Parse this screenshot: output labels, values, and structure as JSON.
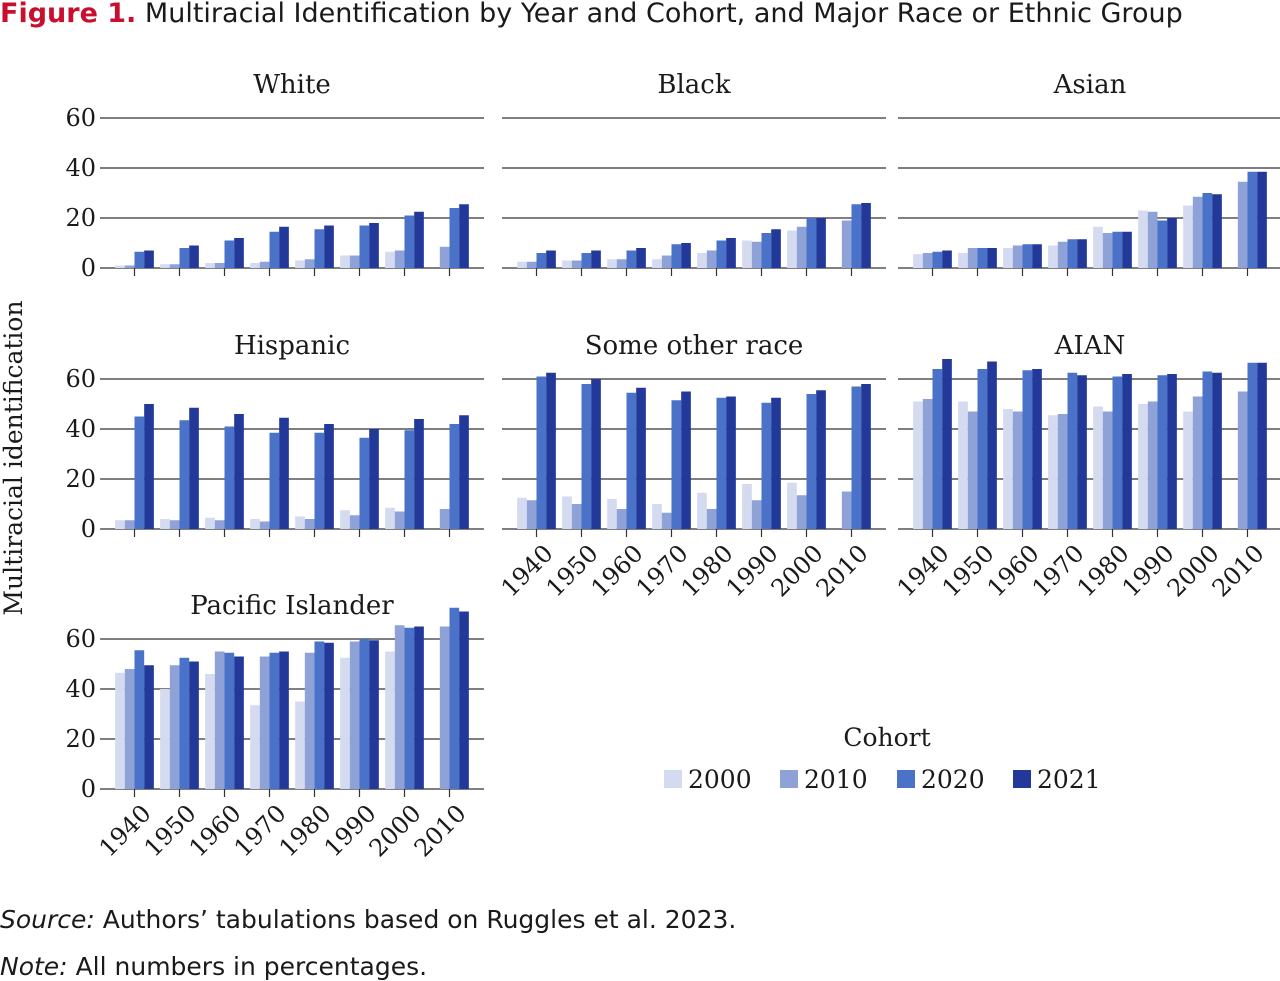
{
  "figure_label": "Figure 1.",
  "title": "Multiracial Identification by Year and Cohort, and Major Race or Ethnic Group",
  "ylabel": "Multiracial identification",
  "legend": {
    "title": "Cohort",
    "items": [
      {
        "name": "2000",
        "color": "#d4daf0"
      },
      {
        "name": "2010",
        "color": "#8ea2d8"
      },
      {
        "name": "2020",
        "color": "#4a72c8"
      },
      {
        "name": "2021",
        "color": "#23399a"
      }
    ]
  },
  "source_label": "Source:",
  "source": "Authors’ tabulations based on Ruggles et al. 2023.",
  "note_label": "Note:",
  "note": "All numbers in percentages.",
  "chart_data": [
    {
      "type": "bar",
      "title": "White",
      "categories": [
        null,
        null,
        null,
        null,
        null,
        null,
        null,
        null
      ],
      "ylim": [
        0,
        75
      ],
      "yticks": [
        0,
        20,
        40,
        60
      ],
      "ytick_labels": true,
      "grid": true,
      "series": [
        {
          "values": [
            1,
            1.5,
            2,
            2,
            3,
            5,
            6.5,
            null
          ]
        },
        {
          "values": [
            1,
            1.5,
            2,
            2.5,
            3.5,
            5,
            7,
            8.5
          ]
        },
        {
          "values": [
            6.5,
            8,
            11,
            14.5,
            15.5,
            17,
            21,
            24
          ]
        },
        {
          "values": [
            7,
            9,
            12,
            16.5,
            17,
            18,
            22.5,
            25.5
          ]
        }
      ]
    },
    {
      "type": "bar",
      "title": "Black",
      "categories": [
        null,
        null,
        null,
        null,
        null,
        null,
        null,
        null
      ],
      "ylim": [
        0,
        75
      ],
      "yticks": [
        0,
        20,
        40,
        60
      ],
      "ytick_labels": false,
      "grid": true,
      "series": [
        {
          "values": [
            2.5,
            3,
            3.5,
            3.5,
            6,
            11,
            15,
            null
          ]
        },
        {
          "values": [
            2.5,
            3,
            3.5,
            5,
            7,
            10.5,
            16.5,
            19
          ]
        },
        {
          "values": [
            6,
            6,
            7,
            9.5,
            11,
            14,
            20,
            25.5
          ]
        },
        {
          "values": [
            7,
            7,
            8,
            10,
            12,
            15.5,
            20,
            26
          ]
        }
      ]
    },
    {
      "type": "bar",
      "title": "Asian",
      "categories": [
        null,
        null,
        null,
        null,
        null,
        null,
        null,
        null
      ],
      "ylim": [
        0,
        75
      ],
      "yticks": [
        0,
        20,
        40,
        60
      ],
      "ytick_labels": false,
      "grid": true,
      "series": [
        {
          "values": [
            5.5,
            6,
            8,
            9,
            16.5,
            23,
            25,
            null
          ]
        },
        {
          "values": [
            6,
            8,
            9,
            10.5,
            14,
            22.5,
            28.5,
            34.5
          ]
        },
        {
          "values": [
            6.5,
            8,
            9.5,
            11.5,
            14.5,
            19,
            30,
            38.5
          ]
        },
        {
          "values": [
            7,
            8,
            9.5,
            11.5,
            14.5,
            20,
            29.5,
            38.5
          ]
        }
      ]
    },
    {
      "type": "bar",
      "title": "Hispanic",
      "categories": [
        null,
        null,
        null,
        null,
        null,
        null,
        null,
        null
      ],
      "ylim": [
        0,
        75
      ],
      "yticks": [
        0,
        20,
        40,
        60
      ],
      "ytick_labels": true,
      "grid": true,
      "series": [
        {
          "values": [
            3.5,
            4,
            4.5,
            4,
            5,
            7.5,
            8.5,
            null
          ]
        },
        {
          "values": [
            3.5,
            3.5,
            3.5,
            3,
            4,
            5.5,
            7,
            8
          ]
        },
        {
          "values": [
            45,
            43.5,
            41,
            38.5,
            38.5,
            36.5,
            39.5,
            42
          ]
        },
        {
          "values": [
            50,
            48.5,
            46,
            44.5,
            42,
            40,
            44,
            45.5
          ]
        }
      ]
    },
    {
      "type": "bar",
      "title": "Some other race",
      "categories": [
        "1940",
        "1950",
        "1960",
        "1970",
        "1980",
        "1990",
        "2000",
        "2010"
      ],
      "ylim": [
        0,
        75
      ],
      "yticks": [
        0,
        20,
        40,
        60
      ],
      "ytick_labels": false,
      "grid": true,
      "series": [
        {
          "values": [
            12.5,
            13,
            12,
            10,
            14.5,
            18,
            18.5,
            null
          ]
        },
        {
          "values": [
            11.5,
            10,
            8,
            6.5,
            8,
            11.5,
            13.5,
            15
          ]
        },
        {
          "values": [
            61,
            58,
            54.5,
            51.5,
            52.5,
            50.5,
            54,
            57
          ]
        },
        {
          "values": [
            62.5,
            60,
            56.5,
            55,
            53,
            52.5,
            55.5,
            58
          ]
        }
      ]
    },
    {
      "type": "bar",
      "title": "AIAN",
      "categories": [
        "1940",
        "1950",
        "1960",
        "1970",
        "1980",
        "1990",
        "2000",
        "2010"
      ],
      "ylim": [
        0,
        75
      ],
      "yticks": [
        0,
        20,
        40,
        60
      ],
      "ytick_labels": false,
      "grid": true,
      "series": [
        {
          "values": [
            51,
            51,
            48,
            45.5,
            49,
            50,
            47,
            null
          ]
        },
        {
          "values": [
            52,
            47,
            47,
            46,
            47,
            51,
            53,
            55
          ]
        },
        {
          "values": [
            64,
            64,
            63.5,
            62.5,
            61,
            61.5,
            63,
            66.5
          ]
        },
        {
          "values": [
            68,
            67,
            64,
            61.5,
            62,
            62,
            62.5,
            66.5
          ]
        }
      ]
    },
    {
      "type": "bar",
      "title": "Pacific Islander",
      "categories": [
        "1940",
        "1950",
        "1960",
        "1970",
        "1980",
        "1990",
        "2000",
        "2010"
      ],
      "ylim": [
        0,
        75
      ],
      "yticks": [
        0,
        20,
        40,
        60
      ],
      "ytick_labels": true,
      "grid": true,
      "series": [
        {
          "values": [
            46.5,
            40,
            46,
            33.5,
            35,
            52.5,
            55,
            null
          ]
        },
        {
          "values": [
            48,
            49.5,
            55,
            53,
            54.5,
            59,
            65.5,
            65
          ]
        },
        {
          "values": [
            55.5,
            52.5,
            54.5,
            54.5,
            59,
            60,
            64.5,
            72.5
          ]
        },
        {
          "values": [
            49.5,
            51,
            53,
            55,
            58.5,
            59.5,
            65,
            71
          ]
        }
      ]
    }
  ]
}
